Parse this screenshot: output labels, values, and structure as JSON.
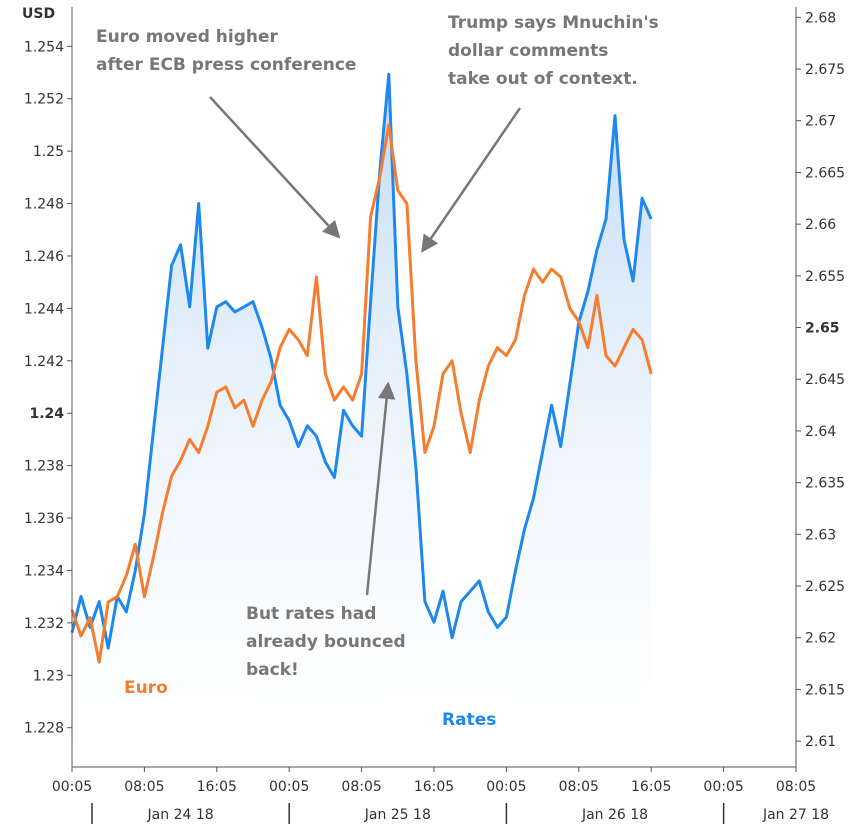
{
  "chart_data": {
    "type": "line",
    "left_axis": {
      "label": "USD",
      "ticks": [
        1.228,
        1.23,
        1.232,
        1.234,
        1.236,
        1.238,
        1.24,
        1.242,
        1.244,
        1.246,
        1.248,
        1.25,
        1.252,
        1.254
      ],
      "tick_labels": [
        "1.228",
        "1.23",
        "1.232",
        "1.234",
        "1.236",
        "1.238",
        "1.24",
        "1.242",
        "1.244",
        "1.246",
        "1.248",
        "1.25",
        "1.252",
        "1.254"
      ],
      "bold_tick": "1.24",
      "ylim": [
        1.2265,
        1.2555
      ]
    },
    "right_axis": {
      "ticks": [
        2.61,
        2.615,
        2.62,
        2.625,
        2.63,
        2.635,
        2.64,
        2.645,
        2.65,
        2.655,
        2.66,
        2.665,
        2.67,
        2.675,
        2.68
      ],
      "tick_labels": [
        "2.61",
        "2.615",
        "2.62",
        "2.625",
        "2.63",
        "2.635",
        "2.64",
        "2.645",
        "2.65",
        "2.655",
        "2.66",
        "2.665",
        "2.67",
        "2.675",
        "2.68"
      ],
      "bold_tick": "2.65",
      "ylim": [
        2.6075,
        2.681
      ]
    },
    "x_axis": {
      "time_ticks": [
        "00:05",
        "08:05",
        "16:05",
        "00:05",
        "08:05",
        "16:05",
        "00:05",
        "08:05",
        "16:05",
        "00:05",
        "08:05"
      ],
      "tick_hours": [
        0,
        8,
        16,
        24,
        32,
        40,
        48,
        56,
        64,
        72,
        80
      ],
      "date_labels": [
        "Jan 24 18",
        "Jan 25 18",
        "Jan 26 18",
        "Jan 27 18"
      ],
      "date_label_hours": [
        12,
        36,
        60,
        80
      ],
      "day_separator_hours": [
        0,
        24,
        48,
        72
      ],
      "xlim": [
        0,
        80
      ]
    },
    "series": [
      {
        "name": "Euro",
        "axis": "left",
        "color": "#f47d30",
        "x": [
          0,
          1,
          2,
          3,
          4,
          5,
          6,
          7,
          8,
          9,
          10,
          11,
          12,
          13,
          14,
          15,
          16,
          17,
          18,
          19,
          20,
          21,
          22,
          23,
          24,
          25,
          26,
          27,
          28,
          29,
          30,
          31,
          32,
          33,
          34,
          35,
          36,
          37,
          38,
          39,
          40,
          41,
          42,
          43,
          44,
          45,
          46,
          47,
          48,
          49,
          50,
          51,
          52,
          53,
          54,
          55,
          56,
          57,
          58,
          59,
          60,
          61,
          62,
          63,
          64
        ],
        "values": [
          1.2325,
          1.2315,
          1.2322,
          1.2305,
          1.2328,
          1.233,
          1.2338,
          1.235,
          1.233,
          1.2345,
          1.2362,
          1.2376,
          1.2382,
          1.239,
          1.2385,
          1.2395,
          1.2408,
          1.241,
          1.2402,
          1.2405,
          1.2395,
          1.2405,
          1.2412,
          1.2425,
          1.2432,
          1.2428,
          1.2422,
          1.2452,
          1.2415,
          1.2405,
          1.241,
          1.2405,
          1.2415,
          1.2475,
          1.249,
          1.251,
          1.2485,
          1.248,
          1.242,
          1.2385,
          1.2395,
          1.2415,
          1.242,
          1.24,
          1.2385,
          1.2405,
          1.2418,
          1.2425,
          1.2422,
          1.2428,
          1.2445,
          1.2455,
          1.245,
          1.2455,
          1.2452,
          1.244,
          1.2435,
          1.2425,
          1.2445,
          1.2422,
          1.2418,
          1.2425,
          1.2432,
          1.2428,
          1.2415
        ]
      },
      {
        "name": "Rates",
        "axis": "right",
        "color": "#1e88f0",
        "x": [
          0,
          1,
          2,
          3,
          4,
          5,
          6,
          7,
          8,
          9,
          10,
          11,
          12,
          13,
          14,
          15,
          16,
          17,
          18,
          19,
          20,
          21,
          22,
          23,
          24,
          25,
          26,
          27,
          28,
          29,
          30,
          31,
          32,
          33,
          34,
          35,
          36,
          37,
          38,
          39,
          40,
          41,
          42,
          43,
          44,
          45,
          46,
          47,
          48,
          49,
          50,
          51,
          52,
          53,
          54,
          55,
          56,
          57,
          58,
          59,
          60,
          61,
          62,
          63,
          64
        ],
        "values": [
          2.6205,
          2.624,
          2.621,
          2.6235,
          2.619,
          2.624,
          2.6225,
          2.6265,
          2.632,
          2.64,
          2.648,
          2.656,
          2.658,
          2.652,
          2.662,
          2.648,
          2.652,
          2.6525,
          2.6515,
          2.652,
          2.6525,
          2.65,
          2.647,
          2.6425,
          2.641,
          2.6385,
          2.6405,
          2.6395,
          2.637,
          2.6355,
          2.642,
          2.6405,
          2.6395,
          2.6525,
          2.665,
          2.6745,
          2.652,
          2.6455,
          2.6365,
          2.6235,
          2.6215,
          2.6245,
          2.62,
          2.6235,
          2.6245,
          2.6255,
          2.6225,
          2.621,
          2.622,
          2.6265,
          2.6305,
          2.6335,
          2.638,
          2.6425,
          2.6385,
          2.6445,
          2.6505,
          2.6535,
          2.6575,
          2.6605,
          2.6705,
          2.6585,
          2.6545,
          2.6625,
          2.6605
        ]
      }
    ],
    "annotations": [
      {
        "id": "ecb",
        "lines": [
          "Euro moved higher",
          "after ECB press conference"
        ]
      },
      {
        "id": "trump",
        "lines": [
          "Trump says Mnuchin's",
          "dollar comments",
          "take out of context."
        ]
      },
      {
        "id": "bounce",
        "lines": [
          "But rates had",
          "already bounced",
          "back!"
        ]
      }
    ],
    "series_labels": [
      {
        "text": "Euro",
        "color": "#f47d30"
      },
      {
        "text": "Rates",
        "color": "#1e88f0"
      }
    ],
    "fill_color": "#cfe3f7",
    "grid": false
  }
}
